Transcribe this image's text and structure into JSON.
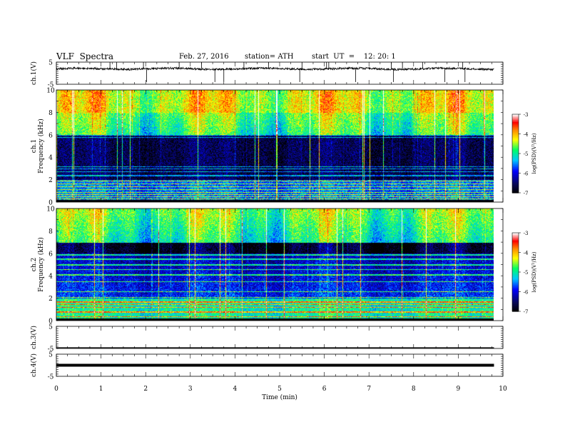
{
  "header": {
    "title": "VLF  Spectra",
    "date": "Feb. 27, 2016",
    "station": "station= ATH",
    "start": "start  UT  =    12: 20: 1"
  },
  "colors": {
    "trace": "#000000",
    "colormap": [
      "#000000",
      "#08085a",
      "#0000ff",
      "#00c8ff",
      "#00ff64",
      "#ffff00",
      "#ff8c00",
      "#ff0000",
      "#ffffff"
    ]
  },
  "chart_data": [
    {
      "type": "line",
      "panel": "ch1",
      "ylabel": "ch.1(V)",
      "ylim": [
        -5,
        5
      ],
      "yticks": [
        "5",
        "-5"
      ],
      "description_values": {
        "baseline": 2.0,
        "spike_times_min": [
          1.2,
          1.35,
          1.95,
          2.02,
          2.75,
          3.25,
          3.55,
          3.75,
          4.2,
          4.75,
          5.45,
          5.5,
          6.05,
          6.1,
          6.7,
          7.5,
          7.55,
          7.75,
          8.2,
          8.7,
          9.1,
          9.15
        ]
      }
    },
    {
      "type": "heatmap",
      "panel": "ch1-spectrogram",
      "ylabel": "ch.1",
      "ylabel2": "Frequency  (kHz)",
      "ylim": [
        0,
        10
      ],
      "yticks": [
        "0",
        "2",
        "4",
        "6",
        "8",
        "10"
      ],
      "colorbar": {
        "label": "log(PSD)(V²/Hz)",
        "range": [
          -7,
          -3
        ],
        "ticks": [
          "-3",
          "-4",
          "-5",
          "-6",
          "-7"
        ]
      },
      "bands_khz": [
        0.1,
        0.3,
        0.5,
        0.7,
        0.9,
        1.15,
        1.4,
        1.65,
        1.9,
        2.4,
        2.75,
        3.0,
        3.2,
        5.8,
        6.0
      ],
      "noise_level": {
        "below_2khz": -5.6,
        "2_to_6khz": -6.6,
        "above_6khz": -4.9,
        "above_8khz": -4.3
      }
    },
    {
      "type": "heatmap",
      "panel": "ch2-spectrogram",
      "ylabel": "ch.2",
      "ylabel2": "Frequency  (kHz)",
      "ylim": [
        0,
        10
      ],
      "yticks": [
        "0",
        "2",
        "4",
        "6",
        "8",
        "10"
      ],
      "colorbar": {
        "label": "log(PSD)(V²/Hz)",
        "range": [
          -7,
          -3
        ],
        "ticks": [
          "-3",
          "-4",
          "-5",
          "-6",
          "-7"
        ]
      },
      "bands_khz": [
        0.4,
        0.8,
        1.2,
        1.45,
        1.7,
        2.1,
        2.6,
        3.5,
        4.1,
        4.6,
        5.0,
        5.5,
        5.9
      ],
      "noise_level": {
        "below_2khz": -5.0,
        "2_to_6khz": -5.8,
        "6_to_7khz": -6.8,
        "above_7khz": -5.0
      }
    },
    {
      "type": "line",
      "panel": "ch3",
      "ylabel": "ch.3(V)",
      "ylim": [
        -5,
        5
      ],
      "yticks": [
        "5",
        "-5"
      ],
      "description_values": {
        "baseline": -5.0
      }
    },
    {
      "type": "line",
      "panel": "ch4",
      "ylabel": "ch.4(V)",
      "ylim": [
        -5,
        5
      ],
      "yticks": [
        "5",
        "-5"
      ],
      "description_values": {
        "baseline": 0.0
      }
    }
  ],
  "xaxis": {
    "label": "Time  (min)",
    "xlim": [
      0,
      10
    ],
    "ticks": [
      "0",
      "1",
      "2",
      "3",
      "4",
      "5",
      "6",
      "7",
      "8",
      "9",
      "10"
    ],
    "data_end": 9.8
  }
}
